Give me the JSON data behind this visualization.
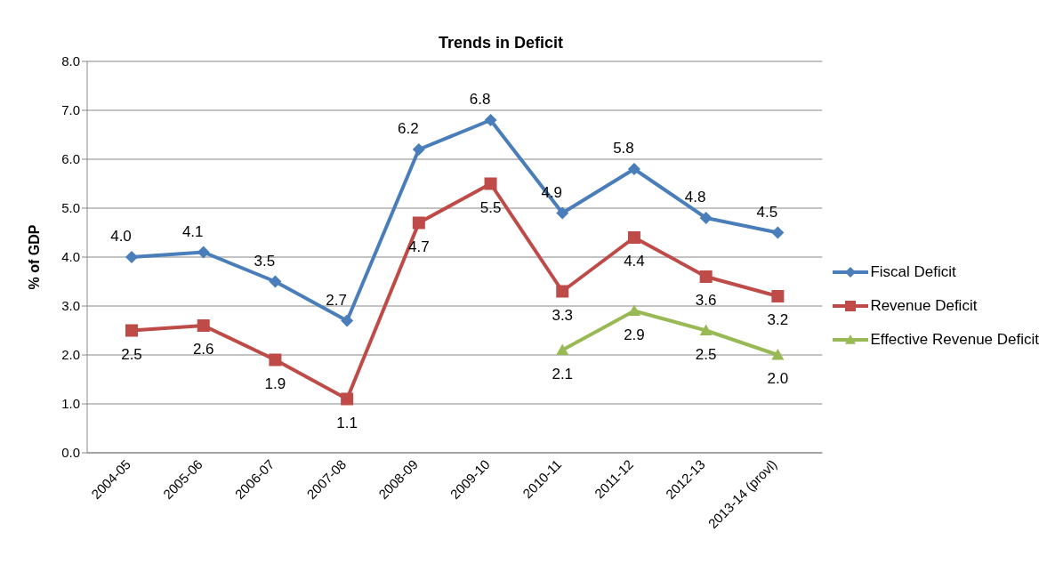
{
  "chart_data": {
    "type": "line",
    "title": "Trends in Deficit",
    "ylabel": "% of GDP",
    "categories": [
      "2004-05",
      "2005-06",
      "2006-07",
      "2007-08",
      "2008-09",
      "2009-10",
      "2010-11",
      "2011-12",
      "2012-13",
      "2013-14 (provl)"
    ],
    "series": [
      {
        "name": "Fiscal Deficit",
        "color": "#4a7ebb",
        "marker": "diamond",
        "values": [
          4.0,
          4.1,
          3.5,
          2.7,
          6.2,
          6.8,
          4.9,
          5.8,
          4.8,
          4.5
        ],
        "value_labels": [
          "4.0",
          "4.1",
          "3.5",
          "2.7",
          "6.2",
          "6.8",
          "4.9",
          "5.8",
          "4.8",
          "4.5"
        ]
      },
      {
        "name": "Revenue Deficit",
        "color": "#be4b48",
        "marker": "square",
        "values": [
          2.5,
          2.6,
          1.9,
          1.1,
          4.7,
          5.5,
          3.3,
          4.4,
          3.6,
          3.2
        ],
        "value_labels": [
          "2.5",
          "2.6",
          "1.9",
          "1.1",
          "4.7",
          "5.5",
          "3.3",
          "4.4",
          "3.6",
          "3.2"
        ]
      },
      {
        "name": "Effective Revenue Deficit",
        "color": "#98b954",
        "marker": "triangle",
        "values": [
          null,
          null,
          null,
          null,
          null,
          null,
          2.1,
          2.9,
          2.5,
          2.0
        ],
        "value_labels": [
          null,
          null,
          null,
          null,
          null,
          null,
          "2.1",
          "2.9",
          "2.5",
          "2.0"
        ]
      }
    ],
    "ylim": [
      0,
      8
    ],
    "yticks": [
      {
        "value": 0,
        "label": "0.0"
      },
      {
        "value": 1,
        "label": "1.0"
      },
      {
        "value": 2,
        "label": "2.0"
      },
      {
        "value": 3,
        "label": "3.0"
      },
      {
        "value": 4,
        "label": "4.0"
      },
      {
        "value": 5,
        "label": "5.0"
      },
      {
        "value": 6,
        "label": "6.0"
      },
      {
        "value": 7,
        "label": "7.0"
      },
      {
        "value": 8,
        "label": "8.0"
      }
    ],
    "grid": "y",
    "legend": "right",
    "line_style": "solid"
  }
}
